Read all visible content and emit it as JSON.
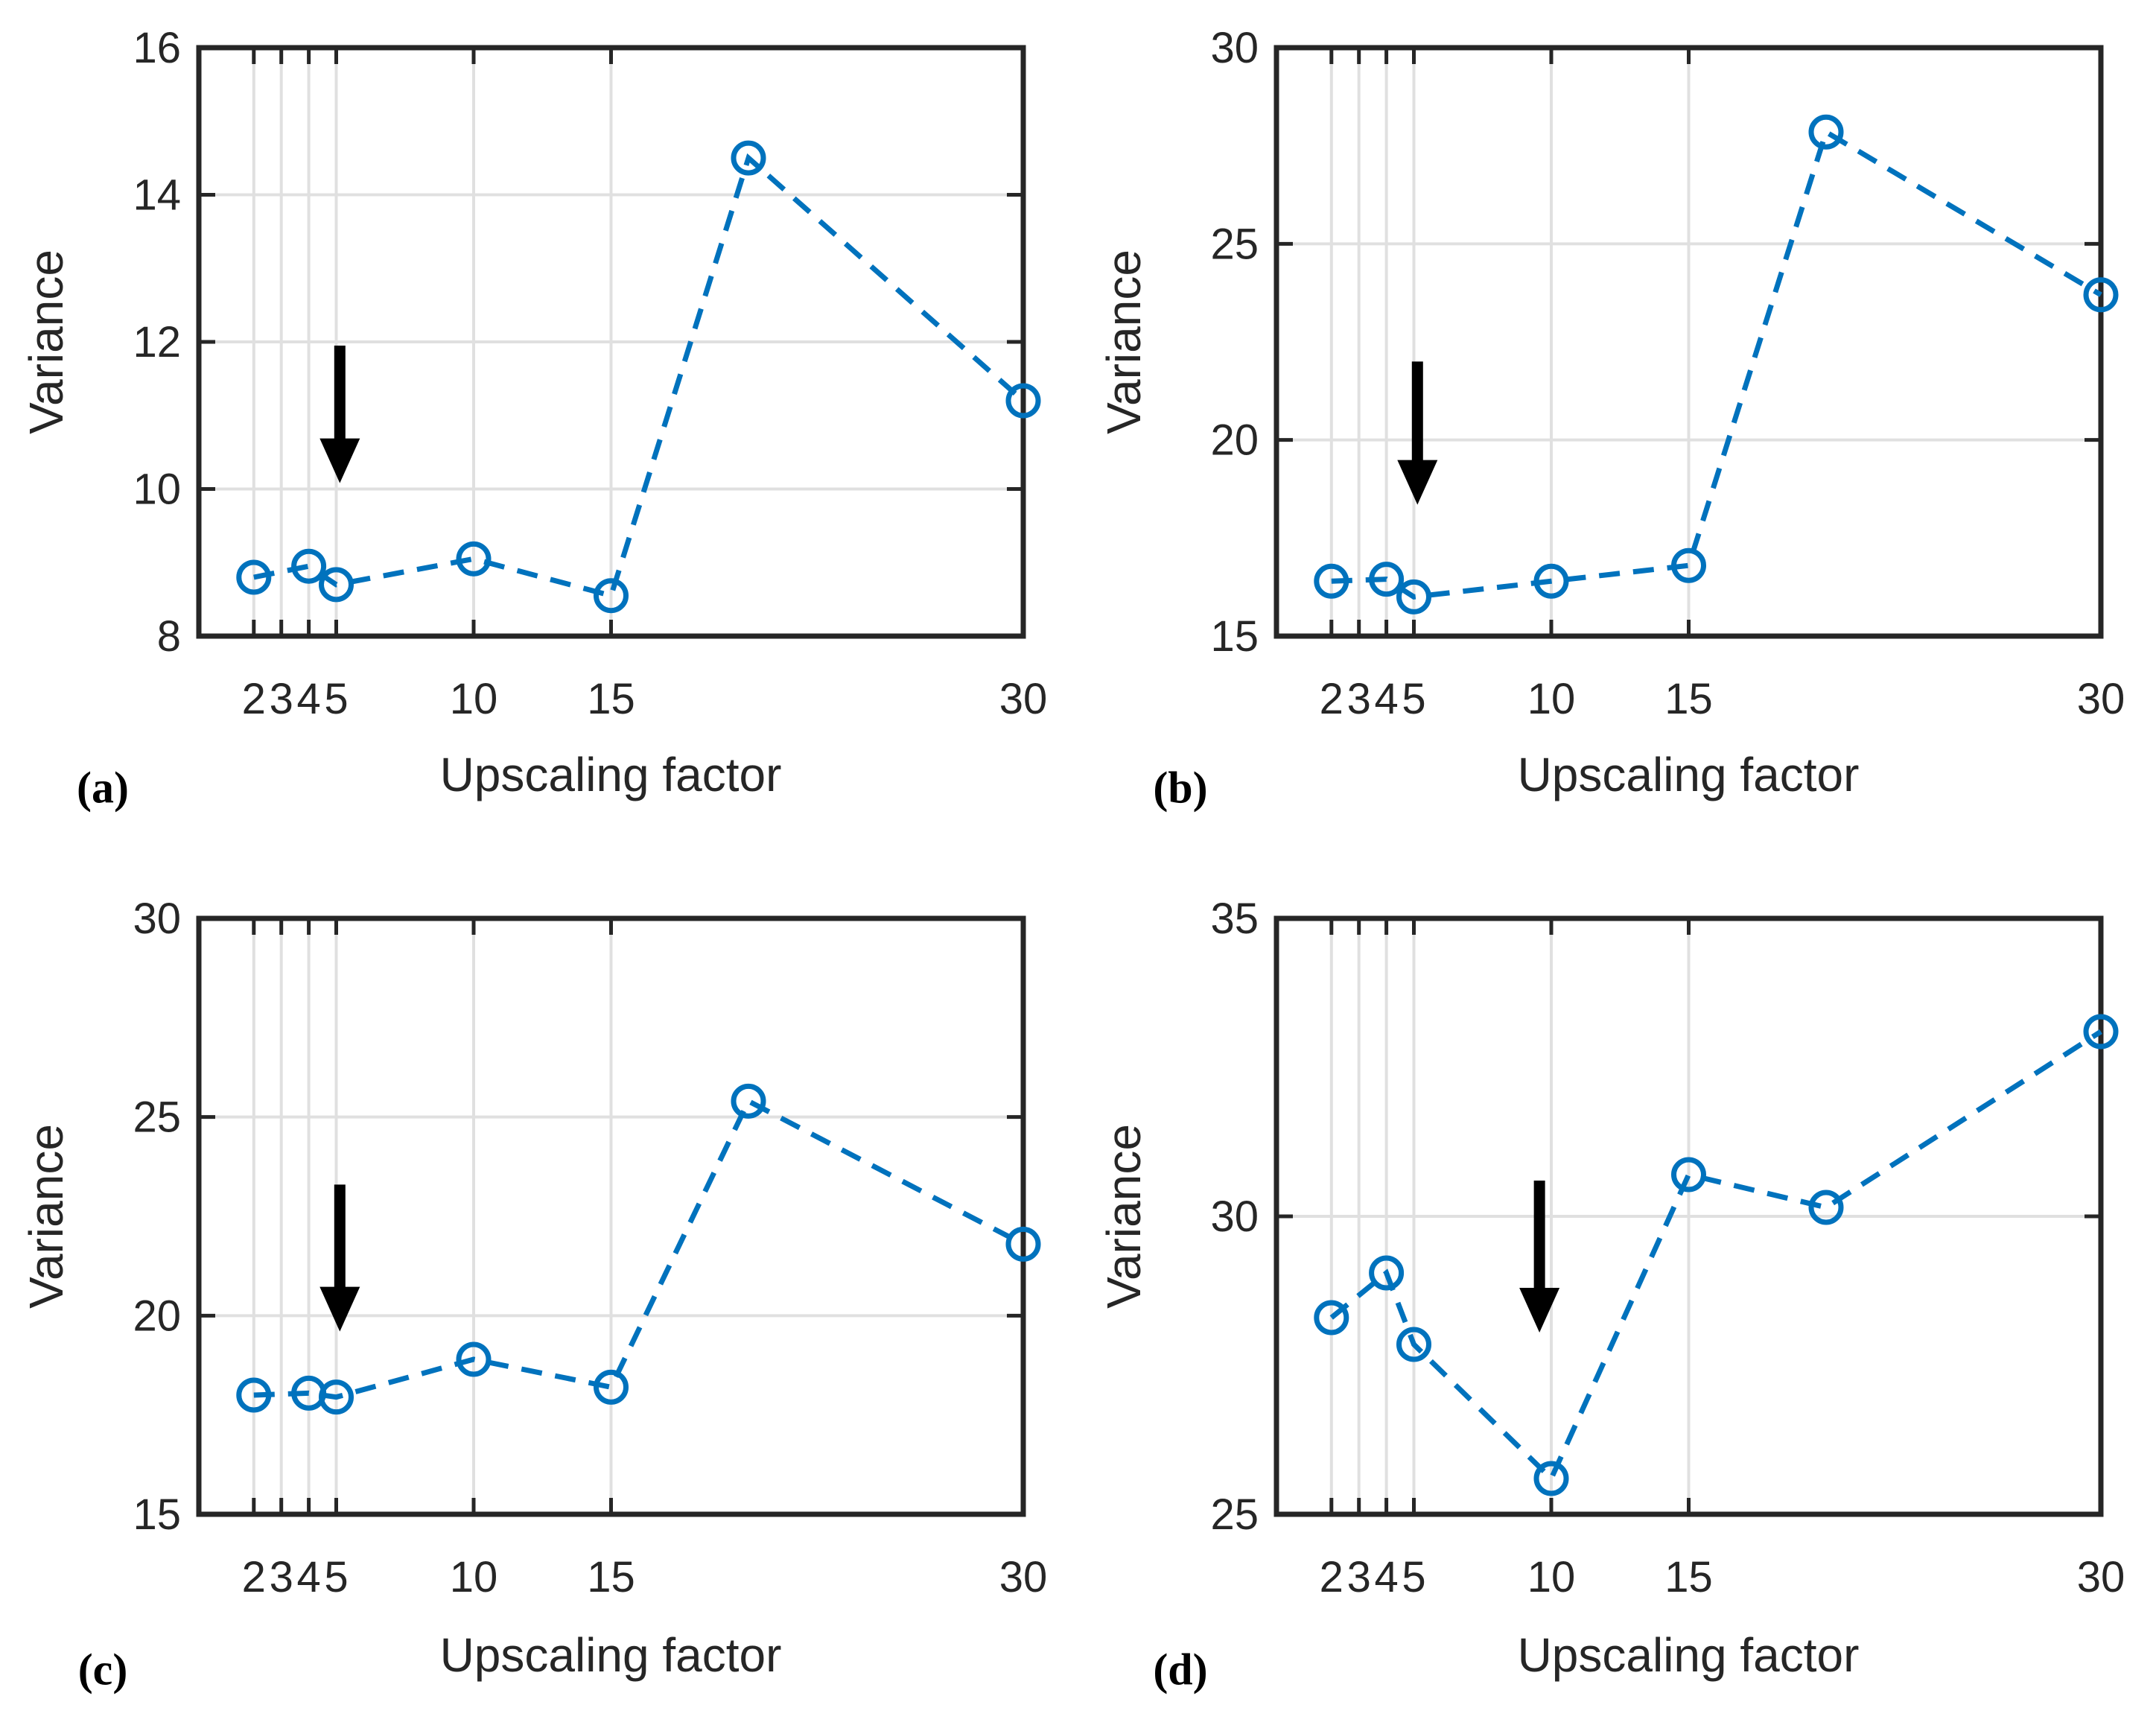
{
  "figure": {
    "background": "#ffffff",
    "line_color": "#0072BD",
    "axis_color": "#262626",
    "grid_color": "#e0e0e0",
    "arrow_color": "#000000"
  },
  "chart_data": [
    {
      "type": "line",
      "id": "a",
      "caption": "(a)",
      "xlabel": "Upscaling factor",
      "ylabel": "Variance",
      "line_style": "dashed",
      "marker": "circle",
      "grid": true,
      "xlim": [
        0,
        30
      ],
      "ylim": [
        8,
        16
      ],
      "xticks": [
        2,
        3,
        4,
        5,
        10,
        15,
        30
      ],
      "yticks": [
        8,
        10,
        12,
        14,
        16
      ],
      "x": [
        2,
        4,
        5,
        10,
        15,
        20,
        30
      ],
      "y": [
        8.8,
        8.95,
        8.7,
        9.05,
        8.55,
        14.5,
        11.2
      ],
      "annotation_arrow": {
        "x": 5.13,
        "y_start": 11.95,
        "y_end": 10.08
      }
    },
    {
      "type": "line",
      "id": "b",
      "caption": "(b)",
      "xlabel": "Upscaling factor",
      "ylabel": "Variance",
      "line_style": "dashed",
      "marker": "circle",
      "grid": true,
      "xlim": [
        0,
        30
      ],
      "ylim": [
        15,
        30
      ],
      "xticks": [
        2,
        3,
        4,
        5,
        10,
        15,
        30
      ],
      "yticks": [
        15,
        20,
        25,
        30
      ],
      "x": [
        2,
        4,
        5,
        10,
        15,
        20,
        30
      ],
      "y": [
        16.4,
        16.45,
        16.0,
        16.4,
        16.8,
        27.85,
        23.7
      ],
      "annotation_arrow": {
        "x": 5.13,
        "y_start": 22.0,
        "y_end": 18.35
      }
    },
    {
      "type": "line",
      "id": "c",
      "caption": "(c)",
      "xlabel": "Upscaling factor",
      "ylabel": "Variance",
      "line_style": "dashed",
      "marker": "circle",
      "grid": true,
      "xlim": [
        0,
        30
      ],
      "ylim": [
        15,
        30
      ],
      "xticks": [
        2,
        3,
        4,
        5,
        10,
        15,
        30
      ],
      "yticks": [
        15,
        20,
        25,
        30
      ],
      "x": [
        2,
        4,
        5,
        10,
        15,
        20,
        30
      ],
      "y": [
        18.0,
        18.05,
        17.95,
        18.9,
        18.2,
        25.4,
        21.8
      ],
      "annotation_arrow": {
        "x": 5.13,
        "y_start": 23.3,
        "y_end": 19.6
      }
    },
    {
      "type": "line",
      "id": "d",
      "caption": "(d)",
      "xlabel": "Upscaling factor",
      "ylabel": "Variance",
      "line_style": "dashed",
      "marker": "circle",
      "grid": true,
      "xlim": [
        0,
        30
      ],
      "ylim": [
        25,
        35
      ],
      "xticks": [
        2,
        3,
        4,
        5,
        10,
        15,
        30
      ],
      "yticks": [
        25,
        30,
        35
      ],
      "x": [
        2,
        4,
        5,
        10,
        15,
        20,
        30
      ],
      "y": [
        28.3,
        29.05,
        27.85,
        25.6,
        30.7,
        30.15,
        33.1
      ],
      "annotation_arrow": {
        "x": 9.57,
        "y_start": 30.6,
        "y_end": 28.05
      }
    }
  ]
}
